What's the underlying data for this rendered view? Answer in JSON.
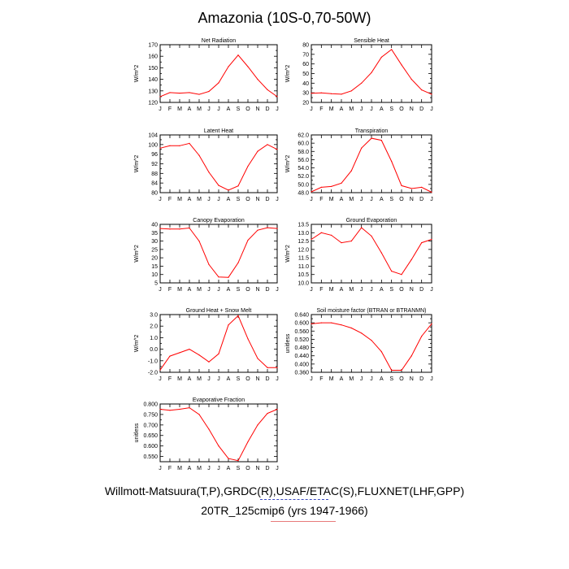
{
  "title": "Amazonia (10S-0,70-50W)",
  "footer": {
    "line1": "Willmott-Matsuura(T,P),GRDC(R),USAF/ETAC(S),FLUXNET(LHF,GPP)",
    "line2": "20TR_125cmip6 (yrs 1947-1966)"
  },
  "colors": {
    "series": "#ff0000",
    "axis": "#000000"
  },
  "chart_data": [
    {
      "type": "line",
      "title": "Net Radiation",
      "ylabel": "W/m^2",
      "categories": [
        "J",
        "F",
        "M",
        "A",
        "M",
        "J",
        "J",
        "A",
        "S",
        "O",
        "N",
        "D",
        "J"
      ],
      "ylim": [
        120,
        170
      ],
      "yticks": [
        120,
        125,
        130,
        135,
        140,
        145,
        150,
        155,
        160,
        165,
        170
      ],
      "ytick_labels": [
        "120",
        "",
        "130",
        "",
        "140",
        "",
        "150",
        "",
        "160",
        "",
        "170"
      ],
      "values": [
        125,
        128.5,
        128,
        128.5,
        127,
        129.5,
        137,
        151,
        161,
        151,
        140,
        131,
        125
      ]
    },
    {
      "type": "line",
      "title": "Sensible Heat",
      "ylabel": "W/m^2",
      "categories": [
        "J",
        "F",
        "M",
        "A",
        "M",
        "J",
        "J",
        "A",
        "S",
        "O",
        "N",
        "D",
        "J"
      ],
      "ylim": [
        20,
        80
      ],
      "yticks": [
        20,
        25,
        30,
        35,
        40,
        45,
        50,
        55,
        60,
        65,
        70,
        75,
        80
      ],
      "ytick_labels": [
        "20",
        "",
        "30",
        "",
        "40",
        "",
        "50",
        "",
        "60",
        "",
        "70",
        "",
        "80"
      ],
      "values": [
        29.5,
        30,
        29,
        28.5,
        32,
        40,
        51,
        67,
        75,
        59,
        44,
        33,
        28.5
      ]
    },
    {
      "type": "line",
      "title": "Latent Heat",
      "ylabel": "W/m^2",
      "categories": [
        "J",
        "F",
        "M",
        "A",
        "M",
        "J",
        "J",
        "A",
        "S",
        "O",
        "N",
        "D",
        "J"
      ],
      "ylim": [
        80,
        104
      ],
      "yticks": [
        80,
        82,
        84,
        86,
        88,
        90,
        92,
        94,
        96,
        98,
        100,
        102,
        104
      ],
      "ytick_labels": [
        "80",
        "",
        "84",
        "",
        "88",
        "",
        "92",
        "",
        "96",
        "",
        "100",
        "",
        "104"
      ],
      "values": [
        98.5,
        99.5,
        99.5,
        100.5,
        95.5,
        88.5,
        83,
        81,
        82.8,
        91,
        97.2,
        100,
        98
      ]
    },
    {
      "type": "line",
      "title": "Transpiration",
      "ylabel": "W/m^2",
      "categories": [
        "J",
        "F",
        "M",
        "A",
        "M",
        "J",
        "J",
        "A",
        "S",
        "O",
        "N",
        "D",
        "J"
      ],
      "ylim": [
        48,
        62
      ],
      "yticks": [
        48,
        49,
        50,
        51,
        52,
        53,
        54,
        55,
        56,
        57,
        58,
        59,
        60,
        61,
        62
      ],
      "ytick_labels": [
        "48.0",
        "",
        "50.0",
        "",
        "52.0",
        "",
        "54.0",
        "",
        "56.0",
        "",
        "58.0",
        "",
        "60.0",
        "",
        "62.0"
      ],
      "values": [
        48.2,
        49.3,
        49.5,
        50.3,
        53.3,
        58.8,
        61.2,
        60.7,
        55.6,
        49.7,
        49,
        49.3,
        48.1
      ]
    },
    {
      "type": "line",
      "title": "Canopy Evaporation",
      "ylabel": "W/m^2",
      "categories": [
        "J",
        "F",
        "M",
        "A",
        "M",
        "J",
        "J",
        "A",
        "S",
        "O",
        "N",
        "D",
        "J"
      ],
      "ylim": [
        5,
        40
      ],
      "yticks": [
        5,
        10,
        15,
        20,
        25,
        30,
        35,
        40
      ],
      "ytick_labels": [
        "5",
        "10",
        "15",
        "20",
        "25",
        "30",
        "35",
        "40"
      ],
      "values": [
        37.5,
        37.2,
        37.2,
        37.8,
        30,
        16,
        8.5,
        8.3,
        17,
        30.5,
        36.5,
        38,
        37.5
      ]
    },
    {
      "type": "line",
      "title": "Ground Evaporation",
      "ylabel": "W/m^2",
      "categories": [
        "J",
        "F",
        "M",
        "A",
        "M",
        "J",
        "J",
        "A",
        "S",
        "O",
        "N",
        "D",
        "J"
      ],
      "ylim": [
        10,
        13.5
      ],
      "yticks": [
        10,
        10.5,
        11,
        11.5,
        12,
        12.5,
        13,
        13.5
      ],
      "ytick_labels": [
        "10.0",
        "10.5",
        "11.0",
        "11.5",
        "12.0",
        "12.5",
        "13.0",
        "13.5"
      ],
      "values": [
        12.6,
        13,
        12.85,
        12.4,
        12.5,
        13.3,
        12.8,
        11.8,
        10.7,
        10.5,
        11.4,
        12.4,
        12.6
      ]
    },
    {
      "type": "line",
      "title": "Ground Heat + Snow Melt",
      "ylabel": "W/m^2",
      "categories": [
        "J",
        "F",
        "M",
        "A",
        "M",
        "J",
        "J",
        "A",
        "S",
        "O",
        "N",
        "D",
        "J"
      ],
      "ylim": [
        -2,
        3
      ],
      "yticks": [
        -2,
        -1.5,
        -1,
        -0.5,
        0,
        0.5,
        1,
        1.5,
        2,
        2.5,
        3
      ],
      "ytick_labels": [
        "-2.0",
        "",
        "-1.0",
        "",
        "0.0",
        "",
        "1.0",
        "",
        "2.0",
        "",
        "3.0"
      ],
      "values": [
        -1.8,
        -0.6,
        -0.3,
        0,
        -0.5,
        -1.1,
        -0.4,
        2.1,
        2.9,
        0.9,
        -0.8,
        -1.6,
        -1.6
      ]
    },
    {
      "type": "line",
      "title": "Soil moisture factor (BTRAN or BTRANMN)",
      "ylabel": "unitless",
      "categories": [
        "J",
        "F",
        "M",
        "A",
        "M",
        "J",
        "J",
        "A",
        "S",
        "O",
        "N",
        "D",
        "J"
      ],
      "ylim": [
        0.36,
        0.64
      ],
      "yticks": [
        0.36,
        0.38,
        0.4,
        0.42,
        0.44,
        0.46,
        0.48,
        0.5,
        0.52,
        0.54,
        0.56,
        0.58,
        0.6,
        0.62,
        0.64
      ],
      "ytick_labels": [
        "0.360",
        "",
        "0.400",
        "",
        "0.440",
        "",
        "0.480",
        "",
        "0.520",
        "",
        "0.560",
        "",
        "0.600",
        "",
        "0.640"
      ],
      "values": [
        0.595,
        0.6,
        0.6,
        0.59,
        0.575,
        0.55,
        0.515,
        0.46,
        0.37,
        0.37,
        0.44,
        0.535,
        0.595
      ]
    },
    {
      "type": "line",
      "title": "Evaporative Fraction",
      "ylabel": "unitless",
      "categories": [
        "J",
        "F",
        "M",
        "A",
        "M",
        "J",
        "J",
        "A",
        "S",
        "O",
        "N",
        "D",
        "J"
      ],
      "ylim": [
        0.525,
        0.8
      ],
      "yticks": [
        0.55,
        0.6,
        0.65,
        0.7,
        0.75,
        0.8
      ],
      "minor_yticks": [
        0.525,
        0.575,
        0.625,
        0.675,
        0.725,
        0.775
      ],
      "ytick_labels": [
        "0.550",
        "0.600",
        "0.650",
        "0.700",
        "0.750",
        "0.800"
      ],
      "values": [
        0.775,
        0.77,
        0.775,
        0.782,
        0.75,
        0.68,
        0.6,
        0.54,
        0.53,
        0.62,
        0.7,
        0.755,
        0.775
      ]
    }
  ]
}
